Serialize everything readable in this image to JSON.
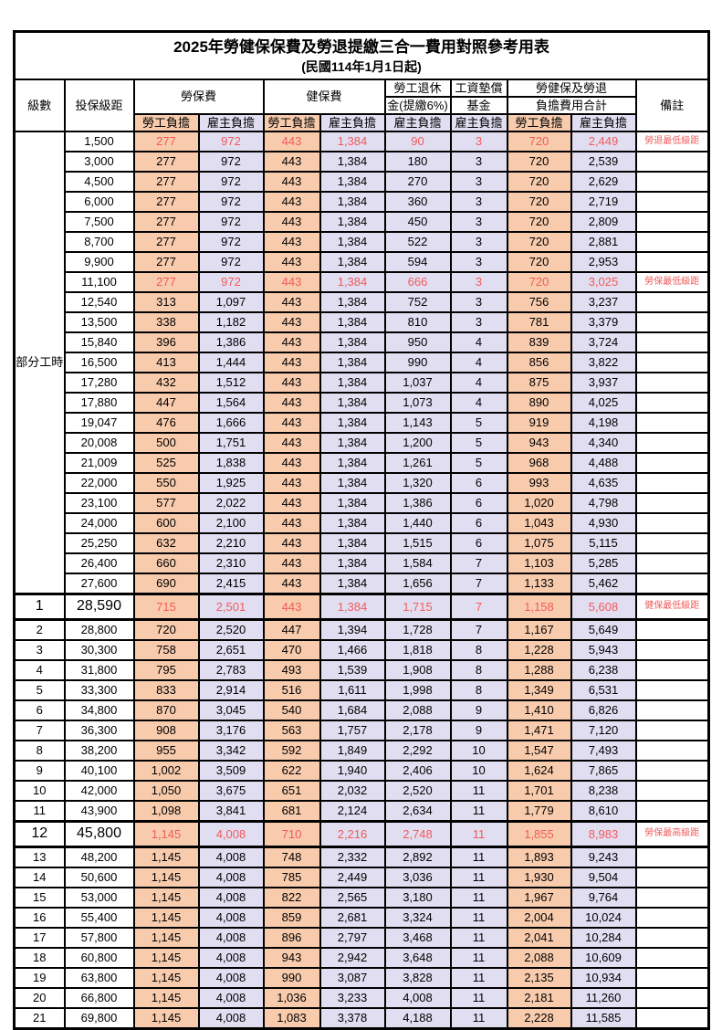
{
  "title": "2025年勞健保保費及勞退提繳三合一費用對照參考用表",
  "subtitle": "(民國114年1月1日起)",
  "colors": {
    "employee_bg": "#F8CBAD",
    "employer_bg": "#E2DEF1",
    "highlight_text": "#F15B5B",
    "grid": "#000000"
  },
  "header": {
    "level": "級數",
    "bracket": "投保級距",
    "labor_fee": "勞保費",
    "health_fee": "健保費",
    "pension_line1": "勞工退休",
    "pension_line2": "金(提繳6%)",
    "wage_fund_line1": "工資墊償",
    "wage_fund_line2": "基金",
    "total_line1": "勞健保及勞退",
    "total_line2": "負擔費用合計",
    "note": "備註",
    "employee_share": "勞工負擔",
    "employer_share": "雇主負擔"
  },
  "part_time_label": "部分工時",
  "rows": [
    {
      "lv": "",
      "b": "1,500",
      "v": [
        "277",
        "972",
        "443",
        "1,384",
        "90",
        "3",
        "720",
        "2,449"
      ],
      "n": "勞退最低級距",
      "red": true,
      "sp": false
    },
    {
      "lv": "",
      "b": "3,000",
      "v": [
        "277",
        "972",
        "443",
        "1,384",
        "180",
        "3",
        "720",
        "2,539"
      ],
      "n": "",
      "red": false,
      "sp": false
    },
    {
      "lv": "",
      "b": "4,500",
      "v": [
        "277",
        "972",
        "443",
        "1,384",
        "270",
        "3",
        "720",
        "2,629"
      ],
      "n": "",
      "red": false,
      "sp": false
    },
    {
      "lv": "",
      "b": "6,000",
      "v": [
        "277",
        "972",
        "443",
        "1,384",
        "360",
        "3",
        "720",
        "2,719"
      ],
      "n": "",
      "red": false,
      "sp": false
    },
    {
      "lv": "",
      "b": "7,500",
      "v": [
        "277",
        "972",
        "443",
        "1,384",
        "450",
        "3",
        "720",
        "2,809"
      ],
      "n": "",
      "red": false,
      "sp": false
    },
    {
      "lv": "",
      "b": "8,700",
      "v": [
        "277",
        "972",
        "443",
        "1,384",
        "522",
        "3",
        "720",
        "2,881"
      ],
      "n": "",
      "red": false,
      "sp": false
    },
    {
      "lv": "",
      "b": "9,900",
      "v": [
        "277",
        "972",
        "443",
        "1,384",
        "594",
        "3",
        "720",
        "2,953"
      ],
      "n": "",
      "red": false,
      "sp": false
    },
    {
      "lv": "",
      "b": "11,100",
      "v": [
        "277",
        "972",
        "443",
        "1,384",
        "666",
        "3",
        "720",
        "3,025"
      ],
      "n": "勞保最低級距",
      "red": true,
      "sp": false
    },
    {
      "lv": "",
      "b": "12,540",
      "v": [
        "313",
        "1,097",
        "443",
        "1,384",
        "752",
        "3",
        "756",
        "3,237"
      ],
      "n": "",
      "red": false,
      "sp": false
    },
    {
      "lv": "",
      "b": "13,500",
      "v": [
        "338",
        "1,182",
        "443",
        "1,384",
        "810",
        "3",
        "781",
        "3,379"
      ],
      "n": "",
      "red": false,
      "sp": false
    },
    {
      "lv": "",
      "b": "15,840",
      "v": [
        "396",
        "1,386",
        "443",
        "1,384",
        "950",
        "4",
        "839",
        "3,724"
      ],
      "n": "",
      "red": false,
      "sp": false
    },
    {
      "lv": "",
      "b": "16,500",
      "v": [
        "413",
        "1,444",
        "443",
        "1,384",
        "990",
        "4",
        "856",
        "3,822"
      ],
      "n": "",
      "red": false,
      "sp": false
    },
    {
      "lv": "",
      "b": "17,280",
      "v": [
        "432",
        "1,512",
        "443",
        "1,384",
        "1,037",
        "4",
        "875",
        "3,937"
      ],
      "n": "",
      "red": false,
      "sp": false
    },
    {
      "lv": "",
      "b": "17,880",
      "v": [
        "447",
        "1,564",
        "443",
        "1,384",
        "1,073",
        "4",
        "890",
        "4,025"
      ],
      "n": "",
      "red": false,
      "sp": false
    },
    {
      "lv": "",
      "b": "19,047",
      "v": [
        "476",
        "1,666",
        "443",
        "1,384",
        "1,143",
        "5",
        "919",
        "4,198"
      ],
      "n": "",
      "red": false,
      "sp": false
    },
    {
      "lv": "",
      "b": "20,008",
      "v": [
        "500",
        "1,751",
        "443",
        "1,384",
        "1,200",
        "5",
        "943",
        "4,340"
      ],
      "n": "",
      "red": false,
      "sp": false
    },
    {
      "lv": "",
      "b": "21,009",
      "v": [
        "525",
        "1,838",
        "443",
        "1,384",
        "1,261",
        "5",
        "968",
        "4,488"
      ],
      "n": "",
      "red": false,
      "sp": false
    },
    {
      "lv": "",
      "b": "22,000",
      "v": [
        "550",
        "1,925",
        "443",
        "1,384",
        "1,320",
        "6",
        "993",
        "4,635"
      ],
      "n": "",
      "red": false,
      "sp": false
    },
    {
      "lv": "",
      "b": "23,100",
      "v": [
        "577",
        "2,022",
        "443",
        "1,384",
        "1,386",
        "6",
        "1,020",
        "4,798"
      ],
      "n": "",
      "red": false,
      "sp": false
    },
    {
      "lv": "",
      "b": "24,000",
      "v": [
        "600",
        "2,100",
        "443",
        "1,384",
        "1,440",
        "6",
        "1,043",
        "4,930"
      ],
      "n": "",
      "red": false,
      "sp": false
    },
    {
      "lv": "",
      "b": "25,250",
      "v": [
        "632",
        "2,210",
        "443",
        "1,384",
        "1,515",
        "6",
        "1,075",
        "5,115"
      ],
      "n": "",
      "red": false,
      "sp": false
    },
    {
      "lv": "",
      "b": "26,400",
      "v": [
        "660",
        "2,310",
        "443",
        "1,384",
        "1,584",
        "7",
        "1,103",
        "5,285"
      ],
      "n": "",
      "red": false,
      "sp": false
    },
    {
      "lv": "",
      "b": "27,600",
      "v": [
        "690",
        "2,415",
        "443",
        "1,384",
        "1,656",
        "7",
        "1,133",
        "5,462"
      ],
      "n": "",
      "red": false,
      "sp": false
    },
    {
      "lv": "1",
      "b": "28,590",
      "v": [
        "715",
        "2,501",
        "443",
        "1,384",
        "1,715",
        "7",
        "1,158",
        "5,608"
      ],
      "n": "健保最低級距",
      "red": true,
      "sp": true
    },
    {
      "lv": "2",
      "b": "28,800",
      "v": [
        "720",
        "2,520",
        "447",
        "1,394",
        "1,728",
        "7",
        "1,167",
        "5,649"
      ],
      "n": "",
      "red": false,
      "sp": false
    },
    {
      "lv": "3",
      "b": "30,300",
      "v": [
        "758",
        "2,651",
        "470",
        "1,466",
        "1,818",
        "8",
        "1,228",
        "5,943"
      ],
      "n": "",
      "red": false,
      "sp": false
    },
    {
      "lv": "4",
      "b": "31,800",
      "v": [
        "795",
        "2,783",
        "493",
        "1,539",
        "1,908",
        "8",
        "1,288",
        "6,238"
      ],
      "n": "",
      "red": false,
      "sp": false
    },
    {
      "lv": "5",
      "b": "33,300",
      "v": [
        "833",
        "2,914",
        "516",
        "1,611",
        "1,998",
        "8",
        "1,349",
        "6,531"
      ],
      "n": "",
      "red": false,
      "sp": false
    },
    {
      "lv": "6",
      "b": "34,800",
      "v": [
        "870",
        "3,045",
        "540",
        "1,684",
        "2,088",
        "9",
        "1,410",
        "6,826"
      ],
      "n": "",
      "red": false,
      "sp": false
    },
    {
      "lv": "7",
      "b": "36,300",
      "v": [
        "908",
        "3,176",
        "563",
        "1,757",
        "2,178",
        "9",
        "1,471",
        "7,120"
      ],
      "n": "",
      "red": false,
      "sp": false
    },
    {
      "lv": "8",
      "b": "38,200",
      "v": [
        "955",
        "3,342",
        "592",
        "1,849",
        "2,292",
        "10",
        "1,547",
        "7,493"
      ],
      "n": "",
      "red": false,
      "sp": false
    },
    {
      "lv": "9",
      "b": "40,100",
      "v": [
        "1,002",
        "3,509",
        "622",
        "1,940",
        "2,406",
        "10",
        "1,624",
        "7,865"
      ],
      "n": "",
      "red": false,
      "sp": false
    },
    {
      "lv": "10",
      "b": "42,000",
      "v": [
        "1,050",
        "3,675",
        "651",
        "2,032",
        "2,520",
        "11",
        "1,701",
        "8,238"
      ],
      "n": "",
      "red": false,
      "sp": false
    },
    {
      "lv": "11",
      "b": "43,900",
      "v": [
        "1,098",
        "3,841",
        "681",
        "2,124",
        "2,634",
        "11",
        "1,779",
        "8,610"
      ],
      "n": "",
      "red": false,
      "sp": false
    },
    {
      "lv": "12",
      "b": "45,800",
      "v": [
        "1,145",
        "4,008",
        "710",
        "2,216",
        "2,748",
        "11",
        "1,855",
        "8,983"
      ],
      "n": "勞保最高級距",
      "red": true,
      "sp": true
    },
    {
      "lv": "13",
      "b": "48,200",
      "v": [
        "1,145",
        "4,008",
        "748",
        "2,332",
        "2,892",
        "11",
        "1,893",
        "9,243"
      ],
      "n": "",
      "red": false,
      "sp": false
    },
    {
      "lv": "14",
      "b": "50,600",
      "v": [
        "1,145",
        "4,008",
        "785",
        "2,449",
        "3,036",
        "11",
        "1,930",
        "9,504"
      ],
      "n": "",
      "red": false,
      "sp": false
    },
    {
      "lv": "15",
      "b": "53,000",
      "v": [
        "1,145",
        "4,008",
        "822",
        "2,565",
        "3,180",
        "11",
        "1,967",
        "9,764"
      ],
      "n": "",
      "red": false,
      "sp": false
    },
    {
      "lv": "16",
      "b": "55,400",
      "v": [
        "1,145",
        "4,008",
        "859",
        "2,681",
        "3,324",
        "11",
        "2,004",
        "10,024"
      ],
      "n": "",
      "red": false,
      "sp": false
    },
    {
      "lv": "17",
      "b": "57,800",
      "v": [
        "1,145",
        "4,008",
        "896",
        "2,797",
        "3,468",
        "11",
        "2,041",
        "10,284"
      ],
      "n": "",
      "red": false,
      "sp": false
    },
    {
      "lv": "18",
      "b": "60,800",
      "v": [
        "1,145",
        "4,008",
        "943",
        "2,942",
        "3,648",
        "11",
        "2,088",
        "10,609"
      ],
      "n": "",
      "red": false,
      "sp": false
    },
    {
      "lv": "19",
      "b": "63,800",
      "v": [
        "1,145",
        "4,008",
        "990",
        "3,087",
        "3,828",
        "11",
        "2,135",
        "10,934"
      ],
      "n": "",
      "red": false,
      "sp": false
    },
    {
      "lv": "20",
      "b": "66,800",
      "v": [
        "1,145",
        "4,008",
        "1,036",
        "3,233",
        "4,008",
        "11",
        "2,181",
        "11,260"
      ],
      "n": "",
      "red": false,
      "sp": false
    },
    {
      "lv": "21",
      "b": "69,800",
      "v": [
        "1,145",
        "4,008",
        "1,083",
        "3,378",
        "4,188",
        "11",
        "2,228",
        "11,585"
      ],
      "n": "",
      "red": false,
      "sp": false
    }
  ]
}
